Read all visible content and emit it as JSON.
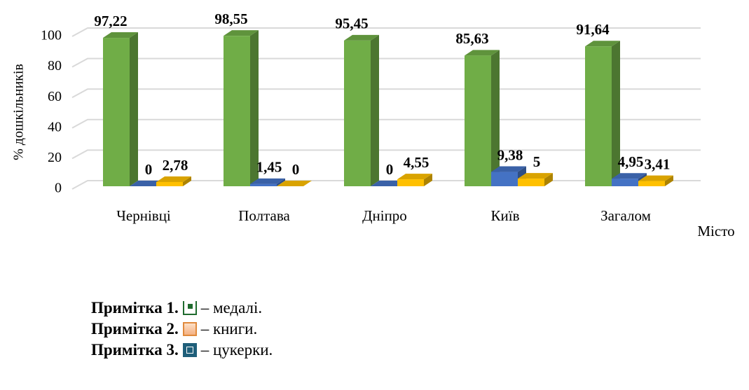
{
  "chart_data": {
    "type": "bar3d",
    "ylabel": "% дошкільників",
    "xlabel": "Місто",
    "categories": [
      "Чернівці",
      "Полтава",
      "Дніпро",
      "Київ",
      "Загалом"
    ],
    "series": [
      {
        "color": "#70ad47",
        "values": [
          97.22,
          98.55,
          95.45,
          85.63,
          91.64
        ],
        "value_labels": [
          "97,22",
          "98,55",
          "95,45",
          "85,63",
          "91,64"
        ]
      },
      {
        "color": "#4472c4",
        "values": [
          0,
          1.45,
          0,
          9.38,
          4.95
        ],
        "value_labels": [
          "0",
          "1,45",
          "0",
          "9,38",
          "4,95"
        ]
      },
      {
        "color": "#ffc000",
        "values": [
          2.78,
          0,
          4.55,
          5,
          3.41
        ],
        "value_labels": [
          "2,78",
          "0",
          "4,55",
          "5",
          "3,41"
        ]
      }
    ],
    "ylim": [
      0,
      100
    ],
    "yticks": [
      0,
      20,
      40,
      60,
      80,
      100
    ],
    "grid": true
  },
  "notes": [
    {
      "label": "Примітка 1.",
      "text": "– медалі."
    },
    {
      "label": "Примітка 2.",
      "text": "– книги."
    },
    {
      "label": "Примітка 3.",
      "text": "– цукерки."
    }
  ]
}
